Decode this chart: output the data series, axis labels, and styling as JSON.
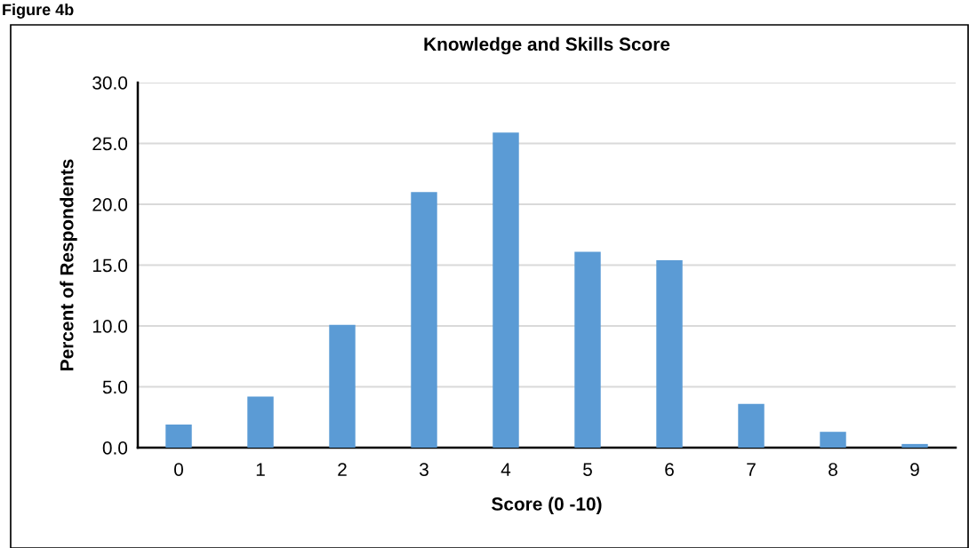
{
  "chart_data": {
    "type": "bar",
    "title": "Knowledge and Skills Score",
    "xlabel": "Score (0 -10)",
    "ylabel": "Percent of Respondents",
    "categories": [
      "0",
      "1",
      "2",
      "3",
      "4",
      "5",
      "6",
      "7",
      "8",
      "9"
    ],
    "values": [
      1.9,
      4.2,
      10.1,
      21.0,
      25.9,
      16.1,
      15.4,
      3.6,
      1.3,
      0.3
    ],
    "color": "#5b9bd5",
    "ylim": [
      0,
      30
    ],
    "yticks": [
      {
        "value": 0,
        "label": "0.0"
      },
      {
        "value": 5,
        "label": "5.0"
      },
      {
        "value": 10,
        "label": "10.0"
      },
      {
        "value": 15,
        "label": "15.0"
      },
      {
        "value": 20,
        "label": "20.0"
      },
      {
        "value": 25,
        "label": "25.0"
      },
      {
        "value": 30,
        "label": "30.0"
      }
    ],
    "grid": "y",
    "annotations": [
      "Figure 4b"
    ]
  }
}
